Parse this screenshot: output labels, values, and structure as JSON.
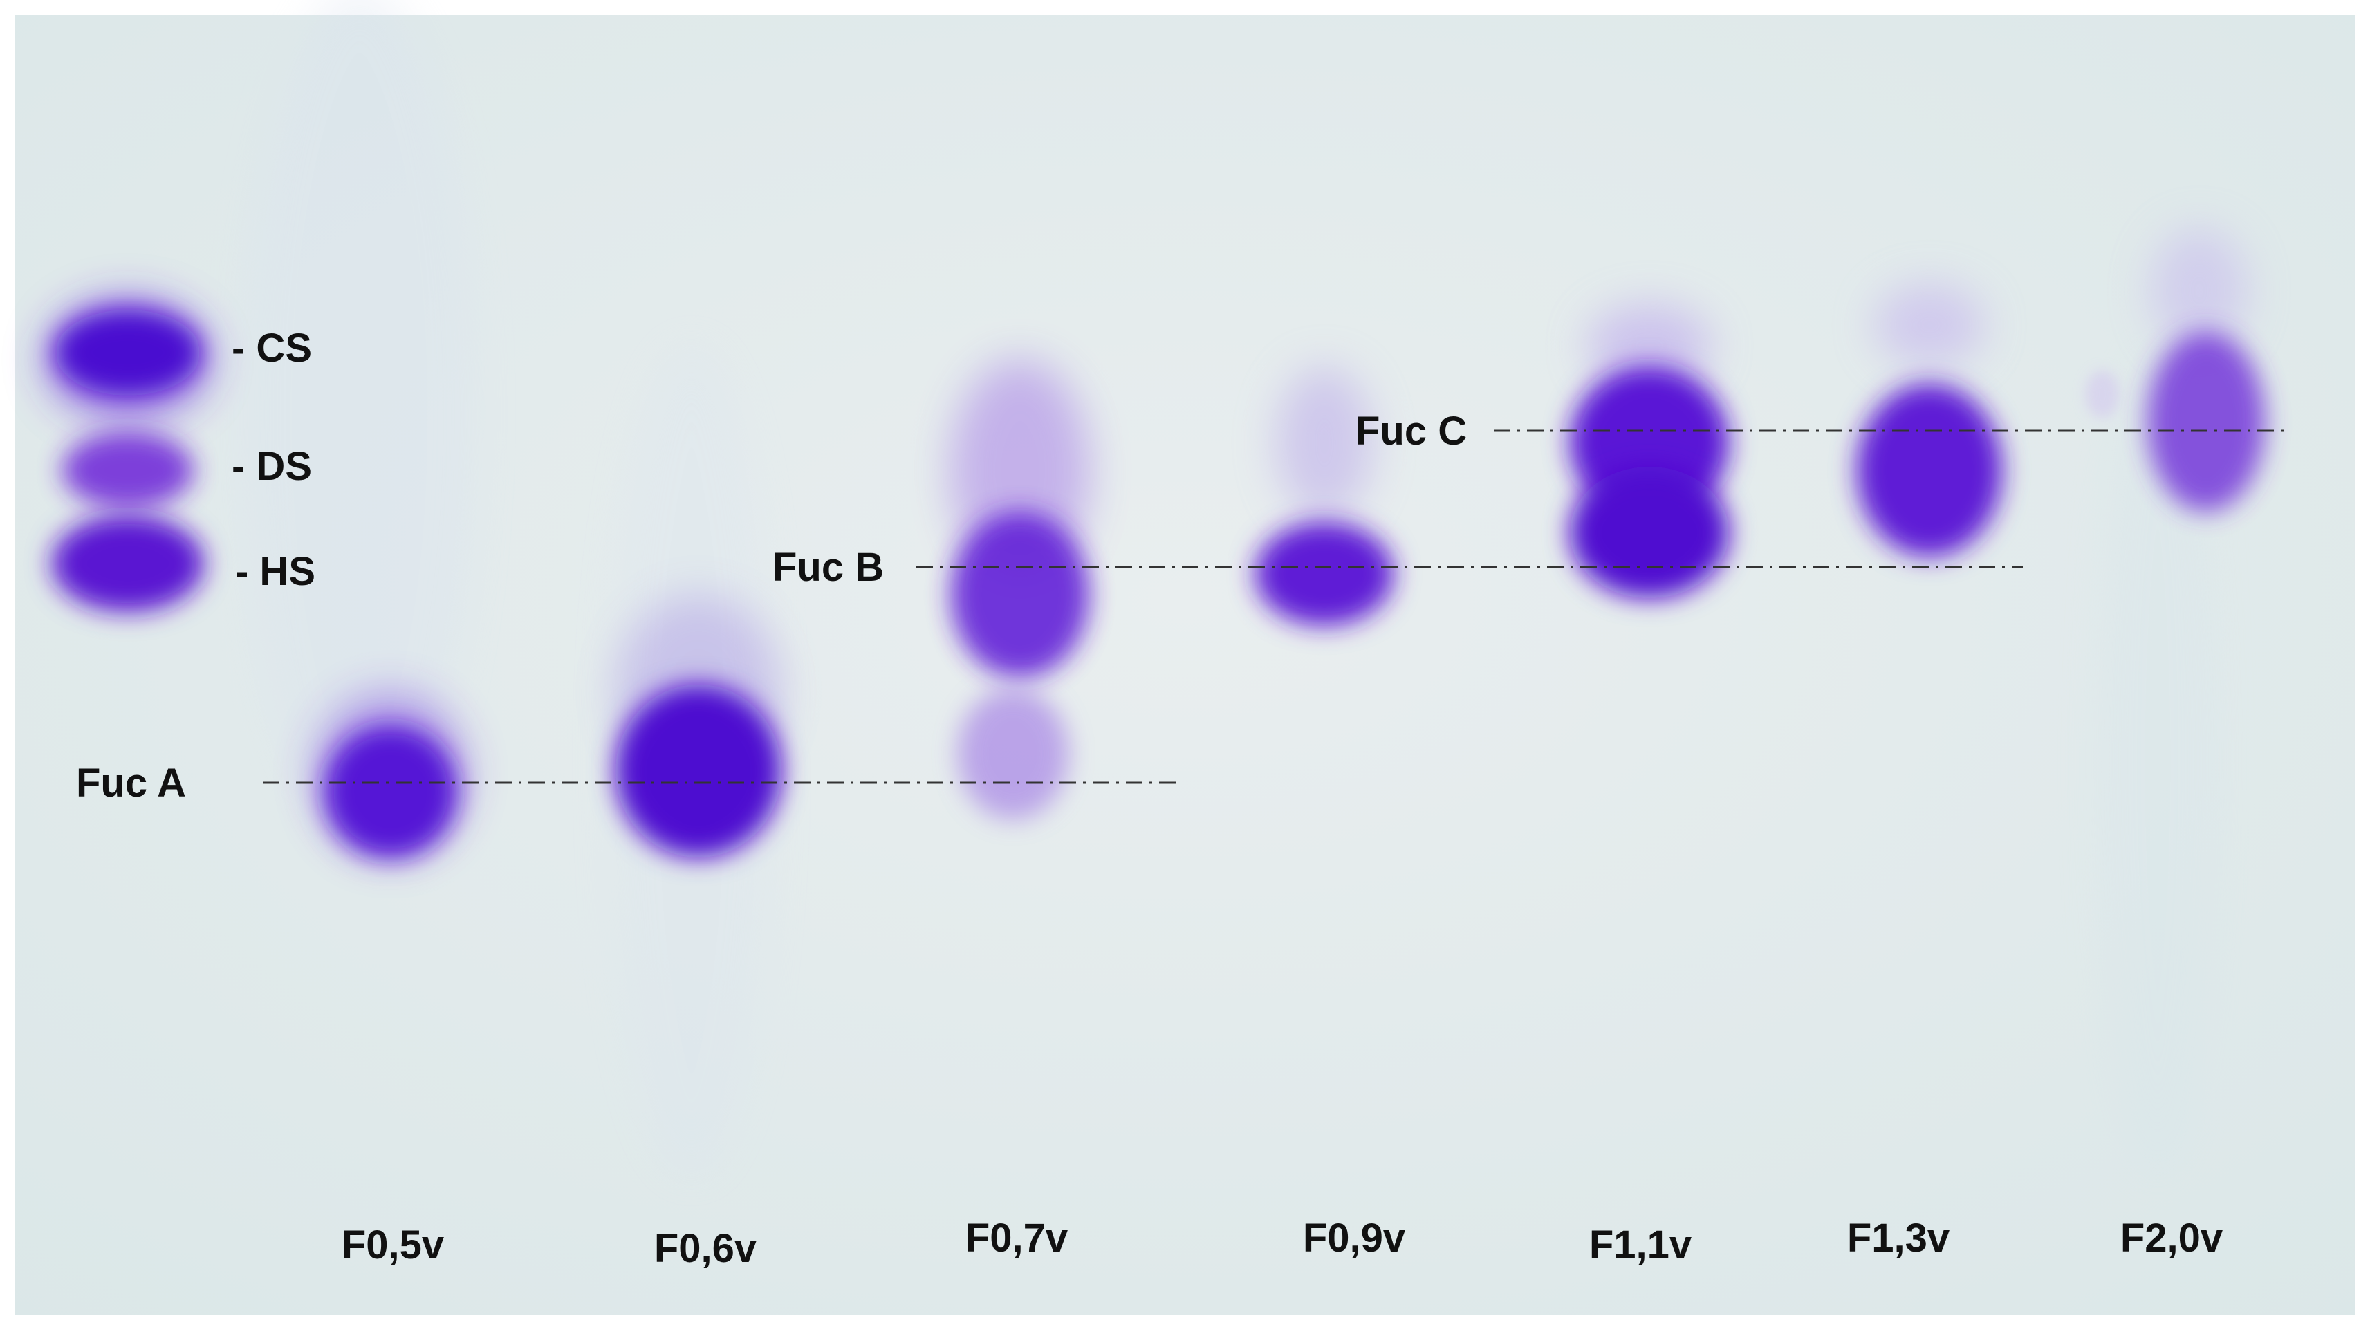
{
  "standards": {
    "cs": "- CS",
    "ds": "- DS",
    "hs": "- HS"
  },
  "bands": {
    "fuc_a": "Fuc A",
    "fuc_b": "Fuc B",
    "fuc_c": "Fuc C"
  },
  "lanes": [
    "F0,5v",
    "F0,6v",
    "F0,7v",
    "F0,9v",
    "F1,1v",
    "F1,3v",
    "F2,0v"
  ],
  "colors": {
    "background": "#e4ecec",
    "stain": "#5b16d8",
    "stain_dark": "#4a10c8",
    "text": "#111111",
    "guide_line": "#333333"
  }
}
